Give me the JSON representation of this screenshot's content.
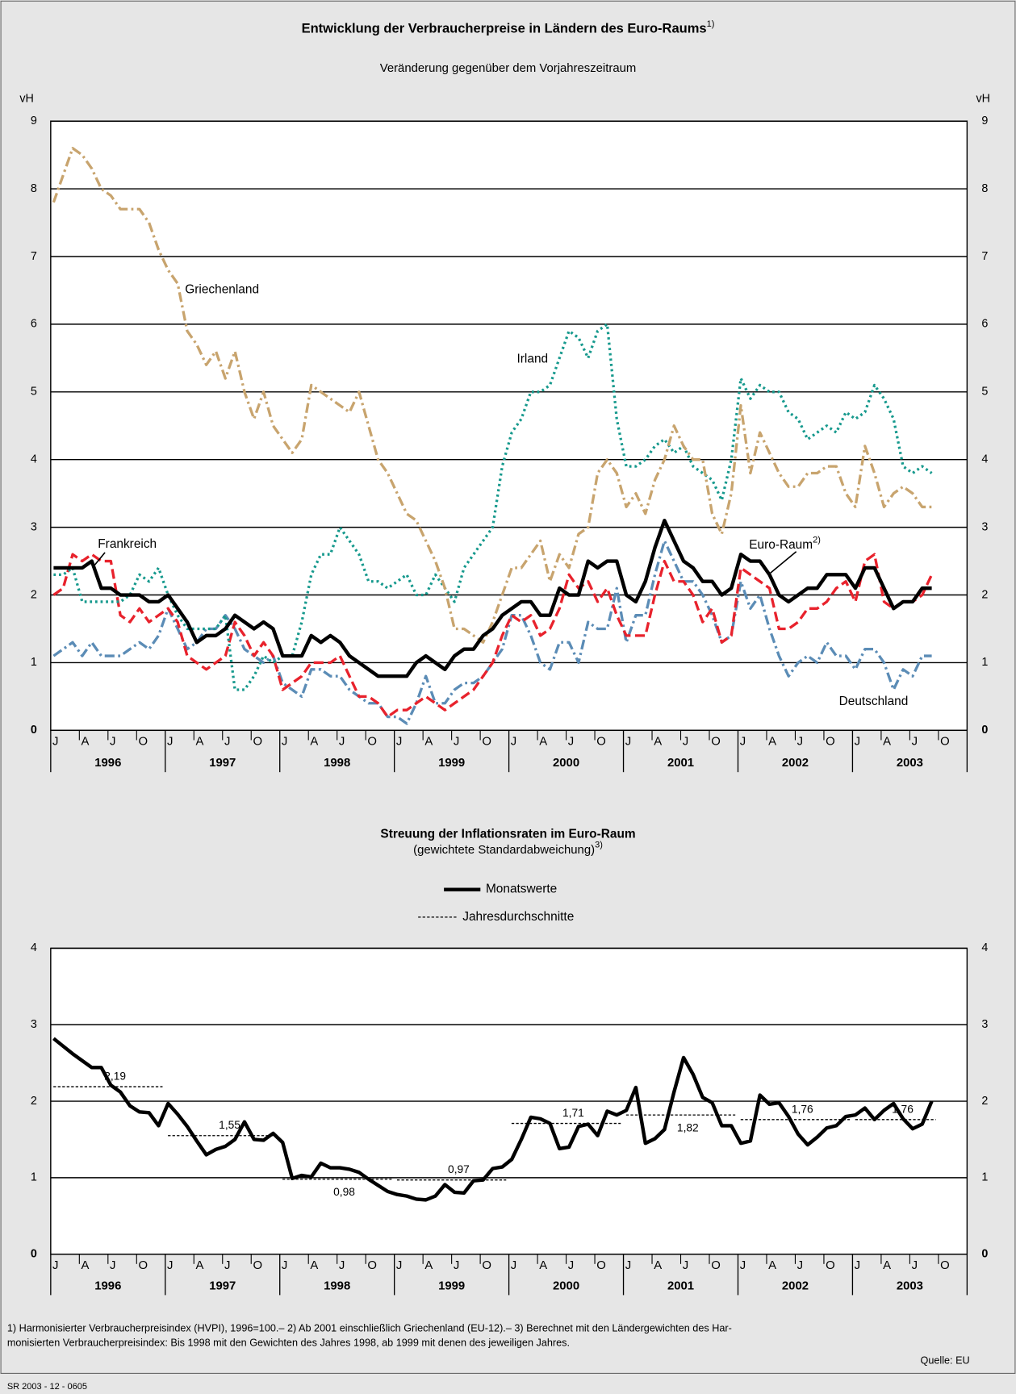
{
  "chart_data": [
    {
      "type": "line",
      "title": "Entwicklung der Verbraucherpreise in Ländern des Euro-Raums",
      "title_note": "1)",
      "subtitle": "Veränderung gegenüber dem Vorjahreszeitraum",
      "y_label": "vH",
      "ylim": [
        0,
        9
      ],
      "yticks": [
        0,
        1,
        2,
        3,
        4,
        5,
        6,
        7,
        8,
        9
      ],
      "grid": true,
      "x_groups": [
        {
          "label": "1996",
          "ticks": [
            "J",
            "A",
            "J",
            "O"
          ]
        },
        {
          "label": "1997",
          "ticks": [
            "J",
            "A",
            "J",
            "O"
          ]
        },
        {
          "label": "1998",
          "ticks": [
            "J",
            "A",
            "J",
            "O"
          ]
        },
        {
          "label": "1999",
          "ticks": [
            "J",
            "A",
            "J",
            "O"
          ]
        },
        {
          "label": "2000",
          "ticks": [
            "J",
            "A",
            "J",
            "O"
          ]
        },
        {
          "label": "2001",
          "ticks": [
            "J",
            "A",
            "J",
            "O"
          ]
        },
        {
          "label": "2002",
          "ticks": [
            "J",
            "A",
            "J",
            "O"
          ]
        },
        {
          "label": "2003",
          "ticks": [
            "J",
            "A",
            "J",
            "O"
          ]
        }
      ],
      "x": [
        "1996-01",
        "1996-02",
        "1996-03",
        "1996-04",
        "1996-05",
        "1996-06",
        "1996-07",
        "1996-08",
        "1996-09",
        "1996-10",
        "1996-11",
        "1996-12",
        "1997-01",
        "1997-02",
        "1997-03",
        "1997-04",
        "1997-05",
        "1997-06",
        "1997-07",
        "1997-08",
        "1997-09",
        "1997-10",
        "1997-11",
        "1997-12",
        "1998-01",
        "1998-02",
        "1998-03",
        "1998-04",
        "1998-05",
        "1998-06",
        "1998-07",
        "1998-08",
        "1998-09",
        "1998-10",
        "1998-11",
        "1998-12",
        "1999-01",
        "1999-02",
        "1999-03",
        "1999-04",
        "1999-05",
        "1999-06",
        "1999-07",
        "1999-08",
        "1999-09",
        "1999-10",
        "1999-11",
        "1999-12",
        "2000-01",
        "2000-02",
        "2000-03",
        "2000-04",
        "2000-05",
        "2000-06",
        "2000-07",
        "2000-08",
        "2000-09",
        "2000-10",
        "2000-11",
        "2000-12",
        "2001-01",
        "2001-02",
        "2001-03",
        "2001-04",
        "2001-05",
        "2001-06",
        "2001-07",
        "2001-08",
        "2001-09",
        "2001-10",
        "2001-11",
        "2001-12",
        "2002-01",
        "2002-02",
        "2002-03",
        "2002-04",
        "2002-05",
        "2002-06",
        "2002-07",
        "2002-08",
        "2002-09",
        "2002-10",
        "2002-11",
        "2002-12",
        "2003-01",
        "2003-02",
        "2003-03",
        "2003-04",
        "2003-05",
        "2003-06",
        "2003-07",
        "2003-08",
        "2003-09"
      ],
      "series": [
        {
          "name": "Euro-Raum",
          "name_note": "2)",
          "color": "#000000",
          "style": "solid",
          "linewidth": 4,
          "values": [
            2.4,
            2.4,
            2.4,
            2.4,
            2.5,
            2.1,
            2.1,
            2.0,
            2.0,
            2.0,
            1.9,
            1.9,
            2.0,
            1.8,
            1.6,
            1.3,
            1.4,
            1.4,
            1.5,
            1.7,
            1.6,
            1.5,
            1.6,
            1.5,
            1.1,
            1.1,
            1.1,
            1.4,
            1.3,
            1.4,
            1.3,
            1.1,
            1.0,
            0.9,
            0.8,
            0.8,
            0.8,
            0.8,
            1.0,
            1.1,
            1.0,
            0.9,
            1.1,
            1.2,
            1.2,
            1.4,
            1.5,
            1.7,
            1.8,
            1.9,
            1.9,
            1.7,
            1.7,
            2.1,
            2.0,
            2.0,
            2.5,
            2.4,
            2.5,
            2.5,
            2.0,
            1.9,
            2.2,
            2.7,
            3.1,
            2.8,
            2.5,
            2.4,
            2.2,
            2.2,
            2.0,
            2.1,
            2.6,
            2.5,
            2.5,
            2.3,
            2.0,
            1.9,
            2.0,
            2.1,
            2.1,
            2.3,
            2.3,
            2.3,
            2.1,
            2.4,
            2.4,
            2.1,
            1.8,
            1.9,
            1.9,
            2.1,
            2.1
          ]
        },
        {
          "name": "Griechenland",
          "color": "#c8a46e",
          "style": "dash-dot",
          "linewidth": 3,
          "values": [
            7.8,
            8.2,
            8.6,
            8.5,
            8.3,
            8.0,
            7.9,
            7.7,
            7.7,
            7.7,
            7.5,
            7.1,
            6.8,
            6.6,
            5.9,
            5.7,
            5.4,
            5.6,
            5.2,
            5.6,
            5.0,
            4.6,
            5.0,
            4.5,
            4.3,
            4.1,
            4.3,
            5.1,
            5.0,
            4.9,
            4.8,
            4.7,
            5.0,
            4.5,
            4.0,
            3.8,
            3.5,
            3.2,
            3.1,
            2.8,
            2.5,
            2.1,
            1.5,
            1.5,
            1.4,
            1.3,
            1.6,
            2.0,
            2.4,
            2.4,
            2.6,
            2.8,
            2.2,
            2.6,
            2.4,
            2.9,
            3.0,
            3.8,
            4.0,
            3.8,
            3.3,
            3.5,
            3.2,
            3.7,
            4.0,
            4.5,
            4.2,
            4.0,
            4.0,
            3.2,
            2.9,
            3.5,
            4.8,
            3.8,
            4.4,
            4.1,
            3.8,
            3.6,
            3.6,
            3.8,
            3.8,
            3.9,
            3.9,
            3.5,
            3.3,
            4.2,
            3.8,
            3.3,
            3.5,
            3.6,
            3.5,
            3.3,
            3.3
          ]
        },
        {
          "name": "Irland",
          "color": "#16998d",
          "style": "dotted",
          "linewidth": 3,
          "values": [
            2.3,
            2.3,
            2.4,
            1.9,
            1.9,
            1.9,
            1.9,
            1.9,
            2.0,
            2.3,
            2.2,
            2.4,
            2.0,
            1.7,
            1.5,
            1.5,
            1.5,
            1.5,
            1.7,
            0.6,
            0.6,
            0.8,
            1.1,
            1.0,
            1.1,
            1.1,
            1.6,
            2.3,
            2.6,
            2.6,
            3.0,
            2.8,
            2.6,
            2.2,
            2.2,
            2.1,
            2.2,
            2.3,
            2.0,
            2.0,
            2.3,
            2.1,
            1.9,
            2.4,
            2.6,
            2.8,
            3.0,
            3.9,
            4.4,
            4.6,
            5.0,
            5.0,
            5.1,
            5.5,
            5.9,
            5.8,
            5.5,
            5.9,
            6.0,
            4.6,
            3.9,
            3.9,
            4.0,
            4.2,
            4.3,
            4.1,
            4.2,
            3.9,
            3.8,
            3.7,
            3.4,
            4.0,
            5.2,
            4.9,
            5.1,
            5.0,
            5.0,
            4.7,
            4.6,
            4.3,
            4.4,
            4.5,
            4.4,
            4.7,
            4.6,
            4.7,
            5.1,
            4.9,
            4.6,
            3.9,
            3.8,
            3.9,
            3.8
          ]
        },
        {
          "name": "Frankreich",
          "color": "#e8222c",
          "style": "dashed",
          "linewidth": 3,
          "values": [
            2.0,
            2.1,
            2.6,
            2.5,
            2.6,
            2.5,
            2.5,
            1.7,
            1.6,
            1.8,
            1.6,
            1.7,
            1.8,
            1.6,
            1.1,
            1.0,
            0.9,
            1.0,
            1.1,
            1.6,
            1.4,
            1.1,
            1.3,
            1.1,
            0.6,
            0.7,
            0.8,
            1.0,
            1.0,
            1.0,
            1.1,
            0.8,
            0.5,
            0.5,
            0.4,
            0.2,
            0.3,
            0.3,
            0.4,
            0.5,
            0.4,
            0.3,
            0.4,
            0.5,
            0.6,
            0.8,
            1.0,
            1.4,
            1.7,
            1.6,
            1.7,
            1.4,
            1.5,
            1.8,
            2.3,
            2.1,
            2.2,
            1.9,
            2.1,
            1.7,
            1.4,
            1.4,
            1.4,
            2.0,
            2.5,
            2.2,
            2.2,
            2.0,
            1.6,
            1.8,
            1.3,
            1.4,
            2.4,
            2.3,
            2.2,
            2.1,
            1.5,
            1.5,
            1.6,
            1.8,
            1.8,
            1.9,
            2.1,
            2.2,
            1.9,
            2.5,
            2.6,
            1.9,
            1.8,
            1.9,
            1.9,
            2.0,
            2.3
          ]
        },
        {
          "name": "Deutschland",
          "color": "#5b8cb6",
          "style": "dash-dot",
          "linewidth": 3,
          "values": [
            1.1,
            1.2,
            1.3,
            1.1,
            1.3,
            1.1,
            1.1,
            1.1,
            1.2,
            1.3,
            1.2,
            1.4,
            1.8,
            1.5,
            1.2,
            1.3,
            1.5,
            1.5,
            1.7,
            1.5,
            1.2,
            1.1,
            1.0,
            1.1,
            0.7,
            0.6,
            0.5,
            0.9,
            0.9,
            0.8,
            0.8,
            0.6,
            0.5,
            0.4,
            0.4,
            0.2,
            0.2,
            0.1,
            0.4,
            0.8,
            0.4,
            0.4,
            0.6,
            0.7,
            0.7,
            0.8,
            1.0,
            1.2,
            1.7,
            1.7,
            1.4,
            1.0,
            0.9,
            1.3,
            1.3,
            1.0,
            1.6,
            1.5,
            1.5,
            2.1,
            1.3,
            1.7,
            1.7,
            2.3,
            2.8,
            2.5,
            2.2,
            2.2,
            2.0,
            1.7,
            1.3,
            1.4,
            2.2,
            1.8,
            2.0,
            1.5,
            1.1,
            0.8,
            1.0,
            1.1,
            1.0,
            1.3,
            1.1,
            1.1,
            0.9,
            1.2,
            1.2,
            1.0,
            0.6,
            0.9,
            0.8,
            1.1,
            1.1
          ]
        }
      ]
    },
    {
      "type": "line",
      "title": "Streuung der Inflationsraten im Euro-Raum",
      "subtitle": "(gewichtete Standardabweichung)",
      "subtitle_note": "3)",
      "legend": true,
      "ylim": [
        0,
        4
      ],
      "yticks": [
        0,
        1,
        2,
        3,
        4
      ],
      "grid": true,
      "x_groups": [
        {
          "label": "1996",
          "ticks": [
            "J",
            "A",
            "J",
            "O"
          ]
        },
        {
          "label": "1997",
          "ticks": [
            "J",
            "A",
            "J",
            "O"
          ]
        },
        {
          "label": "1998",
          "ticks": [
            "J",
            "A",
            "J",
            "O"
          ]
        },
        {
          "label": "1999",
          "ticks": [
            "J",
            "A",
            "J",
            "O"
          ]
        },
        {
          "label": "2000",
          "ticks": [
            "J",
            "A",
            "J",
            "O"
          ]
        },
        {
          "label": "2001",
          "ticks": [
            "J",
            "A",
            "J",
            "O"
          ]
        },
        {
          "label": "2002",
          "ticks": [
            "J",
            "A",
            "J",
            "O"
          ]
        },
        {
          "label": "2003",
          "ticks": [
            "J",
            "A",
            "J",
            "O"
          ]
        }
      ],
      "x": [
        "1996-01",
        "1996-02",
        "1996-03",
        "1996-04",
        "1996-05",
        "1996-06",
        "1996-07",
        "1996-08",
        "1996-09",
        "1996-10",
        "1996-11",
        "1996-12",
        "1997-01",
        "1997-02",
        "1997-03",
        "1997-04",
        "1997-05",
        "1997-06",
        "1997-07",
        "1997-08",
        "1997-09",
        "1997-10",
        "1997-11",
        "1997-12",
        "1998-01",
        "1998-02",
        "1998-03",
        "1998-04",
        "1998-05",
        "1998-06",
        "1998-07",
        "1998-08",
        "1998-09",
        "1998-10",
        "1998-11",
        "1998-12",
        "1999-01",
        "1999-02",
        "1999-03",
        "1999-04",
        "1999-05",
        "1999-06",
        "1999-07",
        "1999-08",
        "1999-09",
        "1999-10",
        "1999-11",
        "1999-12",
        "2000-01",
        "2000-02",
        "2000-03",
        "2000-04",
        "2000-05",
        "2000-06",
        "2000-07",
        "2000-08",
        "2000-09",
        "2000-10",
        "2000-11",
        "2000-12",
        "2001-01",
        "2001-02",
        "2001-03",
        "2001-04",
        "2001-05",
        "2001-06",
        "2001-07",
        "2001-08",
        "2001-09",
        "2001-10",
        "2001-11",
        "2001-12",
        "2002-01",
        "2002-02",
        "2002-03",
        "2002-04",
        "2002-05",
        "2002-06",
        "2002-07",
        "2002-08",
        "2002-09",
        "2002-10",
        "2002-11",
        "2002-12",
        "2003-01",
        "2003-02",
        "2003-03",
        "2003-04",
        "2003-05",
        "2003-06",
        "2003-07",
        "2003-08",
        "2003-09"
      ],
      "series": [
        {
          "name": "Monatswerte",
          "color": "#000000",
          "style": "solid",
          "linewidth": 4,
          "values": [
            2.82,
            2.72,
            2.62,
            2.53,
            2.44,
            2.44,
            2.21,
            2.12,
            1.94,
            1.86,
            1.85,
            1.68,
            1.97,
            1.83,
            1.67,
            1.48,
            1.3,
            1.37,
            1.41,
            1.5,
            1.73,
            1.5,
            1.49,
            1.58,
            1.46,
            0.99,
            1.03,
            1.01,
            1.19,
            1.13,
            1.13,
            1.11,
            1.07,
            0.98,
            0.9,
            0.82,
            0.78,
            0.76,
            0.72,
            0.71,
            0.76,
            0.91,
            0.81,
            0.8,
            0.96,
            0.97,
            1.12,
            1.14,
            1.24,
            1.5,
            1.79,
            1.77,
            1.71,
            1.38,
            1.4,
            1.67,
            1.7,
            1.55,
            1.87,
            1.82,
            1.88,
            2.18,
            1.45,
            1.51,
            1.63,
            2.12,
            2.57,
            2.35,
            2.05,
            1.98,
            1.68,
            1.68,
            1.45,
            1.48,
            2.08,
            1.96,
            1.98,
            1.8,
            1.57,
            1.43,
            1.53,
            1.65,
            1.68,
            1.8,
            1.82,
            1.91,
            1.76,
            1.88,
            1.97,
            1.77,
            1.64,
            1.7,
            2.0
          ]
        },
        {
          "name": "Jahresdurchschnitte",
          "color": "#000000",
          "style": "fine-dashed",
          "linewidth": 1.2,
          "x": [
            "1996",
            "1997",
            "1998",
            "1999",
            "2000",
            "2001",
            "2002",
            "2003"
          ],
          "values": [
            2.19,
            1.55,
            0.98,
            0.97,
            1.71,
            1.82,
            1.76,
            1.76
          ],
          "value_labels": [
            "2,19",
            "1,55",
            "0,98",
            "0,97",
            "1,71",
            "1,82",
            "1,76",
            "1,76"
          ]
        }
      ]
    }
  ],
  "footnotes": [
    "1) Harmonisierter Verbraucherpreisindex (HVPI), 1996=100.– 2) Ab 2001 einschließlich Griechenland (EU-12).– 3) Berechnet mit den Ländergewichten des Har-",
    "monisierten Verbraucherpreisindex: Bis 1998 mit den Gewichten des Jahres 1998, ab 1999 mit denen des jeweiligen Jahres."
  ],
  "source": "Quelle: EU",
  "code": "SR 2003 - 12 - 0605"
}
